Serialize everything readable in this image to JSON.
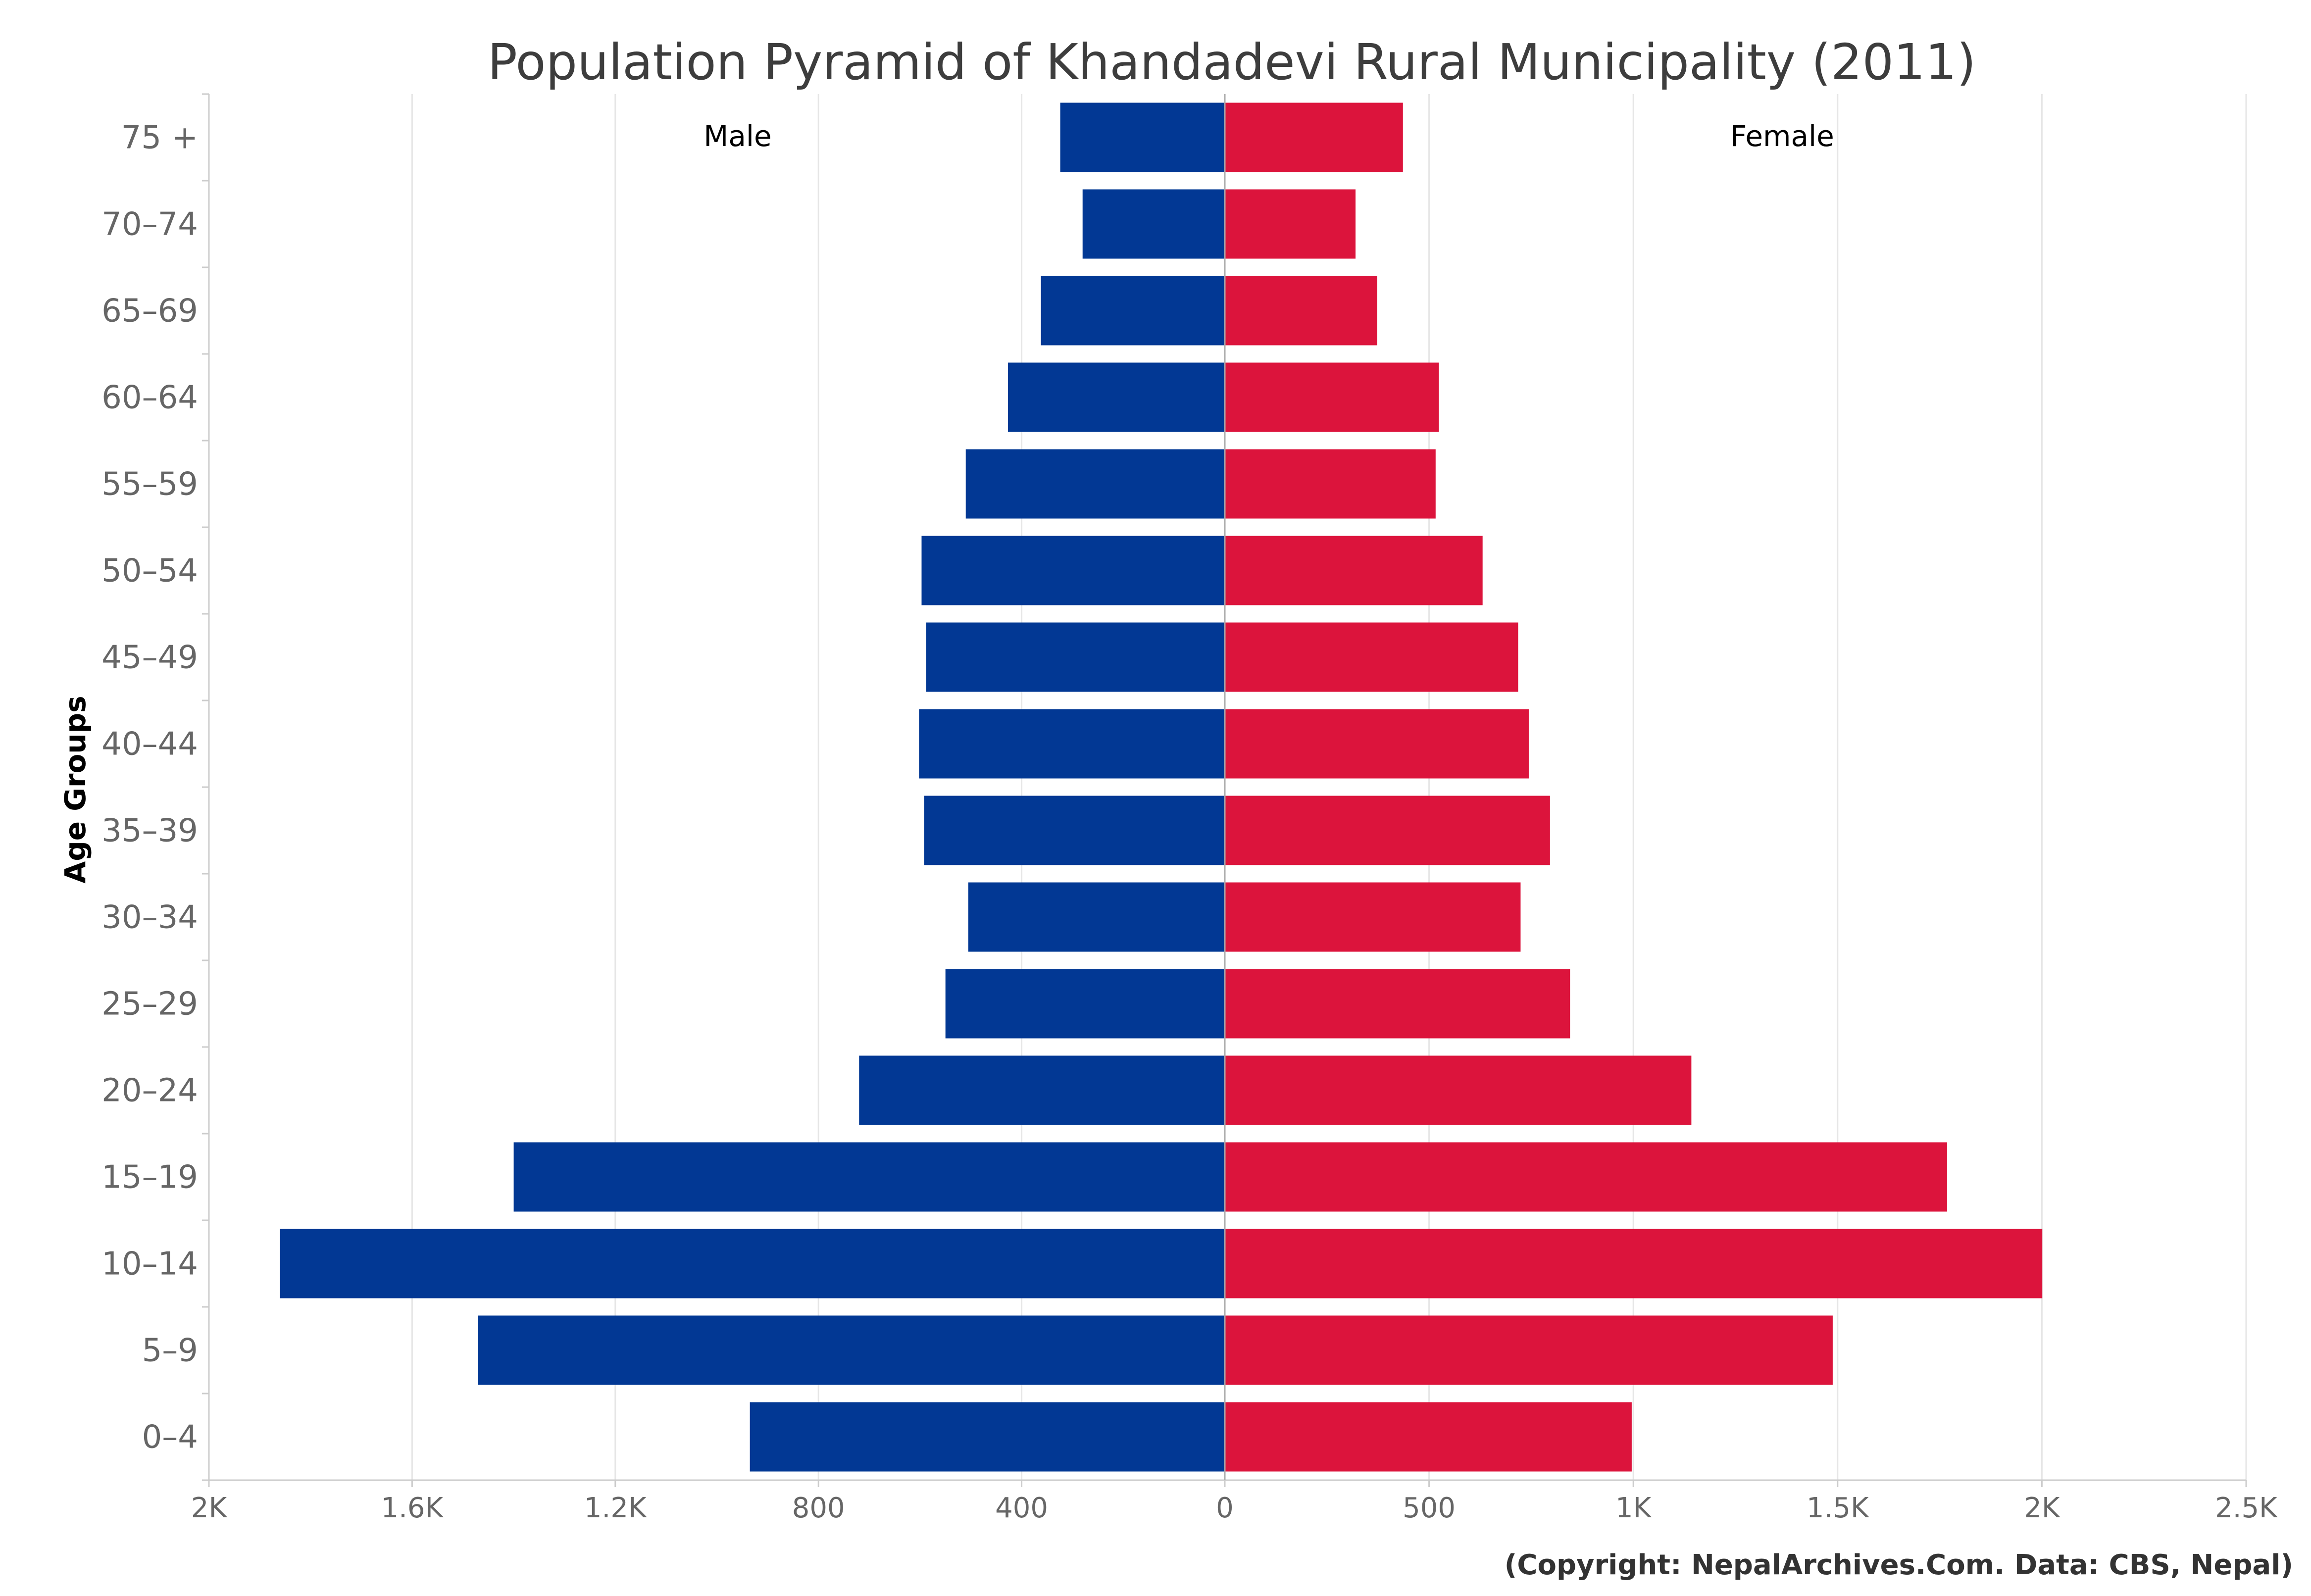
{
  "chart_data": {
    "type": "bar",
    "orientation": "horizontal",
    "layout": "population-pyramid",
    "title": "Population Pyramid of Khandadevi Rural Municipality (2011)",
    "ylabel": "Age Groups",
    "credit": "(Copyright: NepalArchives.Com. Data: CBS, Nepal)",
    "categories": [
      "0-4",
      "5-9",
      "10-14",
      "15-19",
      "20-24",
      "25-29",
      "30-34",
      "35-39",
      "40-44",
      "45-49",
      "50-54",
      "55-59",
      "60-64",
      "65-69",
      "70-74",
      "75 +"
    ],
    "category_labels": [
      "0–4",
      "5–9",
      "10–14",
      "15–19",
      "20–24",
      "25–29",
      "30–34",
      "35–39",
      "40–44",
      "45–49",
      "50–54",
      "55–59",
      "60–64",
      "65–69",
      "70–74",
      "75 +"
    ],
    "series": [
      {
        "name": "Male",
        "color": "#023894",
        "side": "left",
        "values": [
          935,
          1470,
          1860,
          1400,
          720,
          550,
          505,
          592,
          602,
          588,
          597,
          510,
          427,
          362,
          280,
          324
        ]
      },
      {
        "name": "Female",
        "color": "#dc143c",
        "side": "right",
        "values": [
          996,
          1488,
          2001,
          1768,
          1142,
          845,
          724,
          796,
          744,
          718,
          631,
          516,
          524,
          373,
          320,
          436
        ]
      }
    ],
    "male_axis": {
      "range": [
        0,
        2000
      ],
      "ticks": [
        2000,
        1600,
        1200,
        800,
        400,
        0
      ],
      "tick_labels": [
        "2K",
        "1.6K",
        "1.2K",
        "800",
        "400",
        "0"
      ]
    },
    "female_axis": {
      "range": [
        0,
        2500
      ],
      "ticks": [
        0,
        500,
        1000,
        1500,
        2000,
        2500
      ],
      "tick_labels": [
        "0",
        "500",
        "1K",
        "1.5K",
        "2K",
        "2.5K"
      ]
    },
    "grid": true,
    "gridline_color": "#e6e6e6",
    "axis_line_color": "#cccccc",
    "legend": "none"
  }
}
